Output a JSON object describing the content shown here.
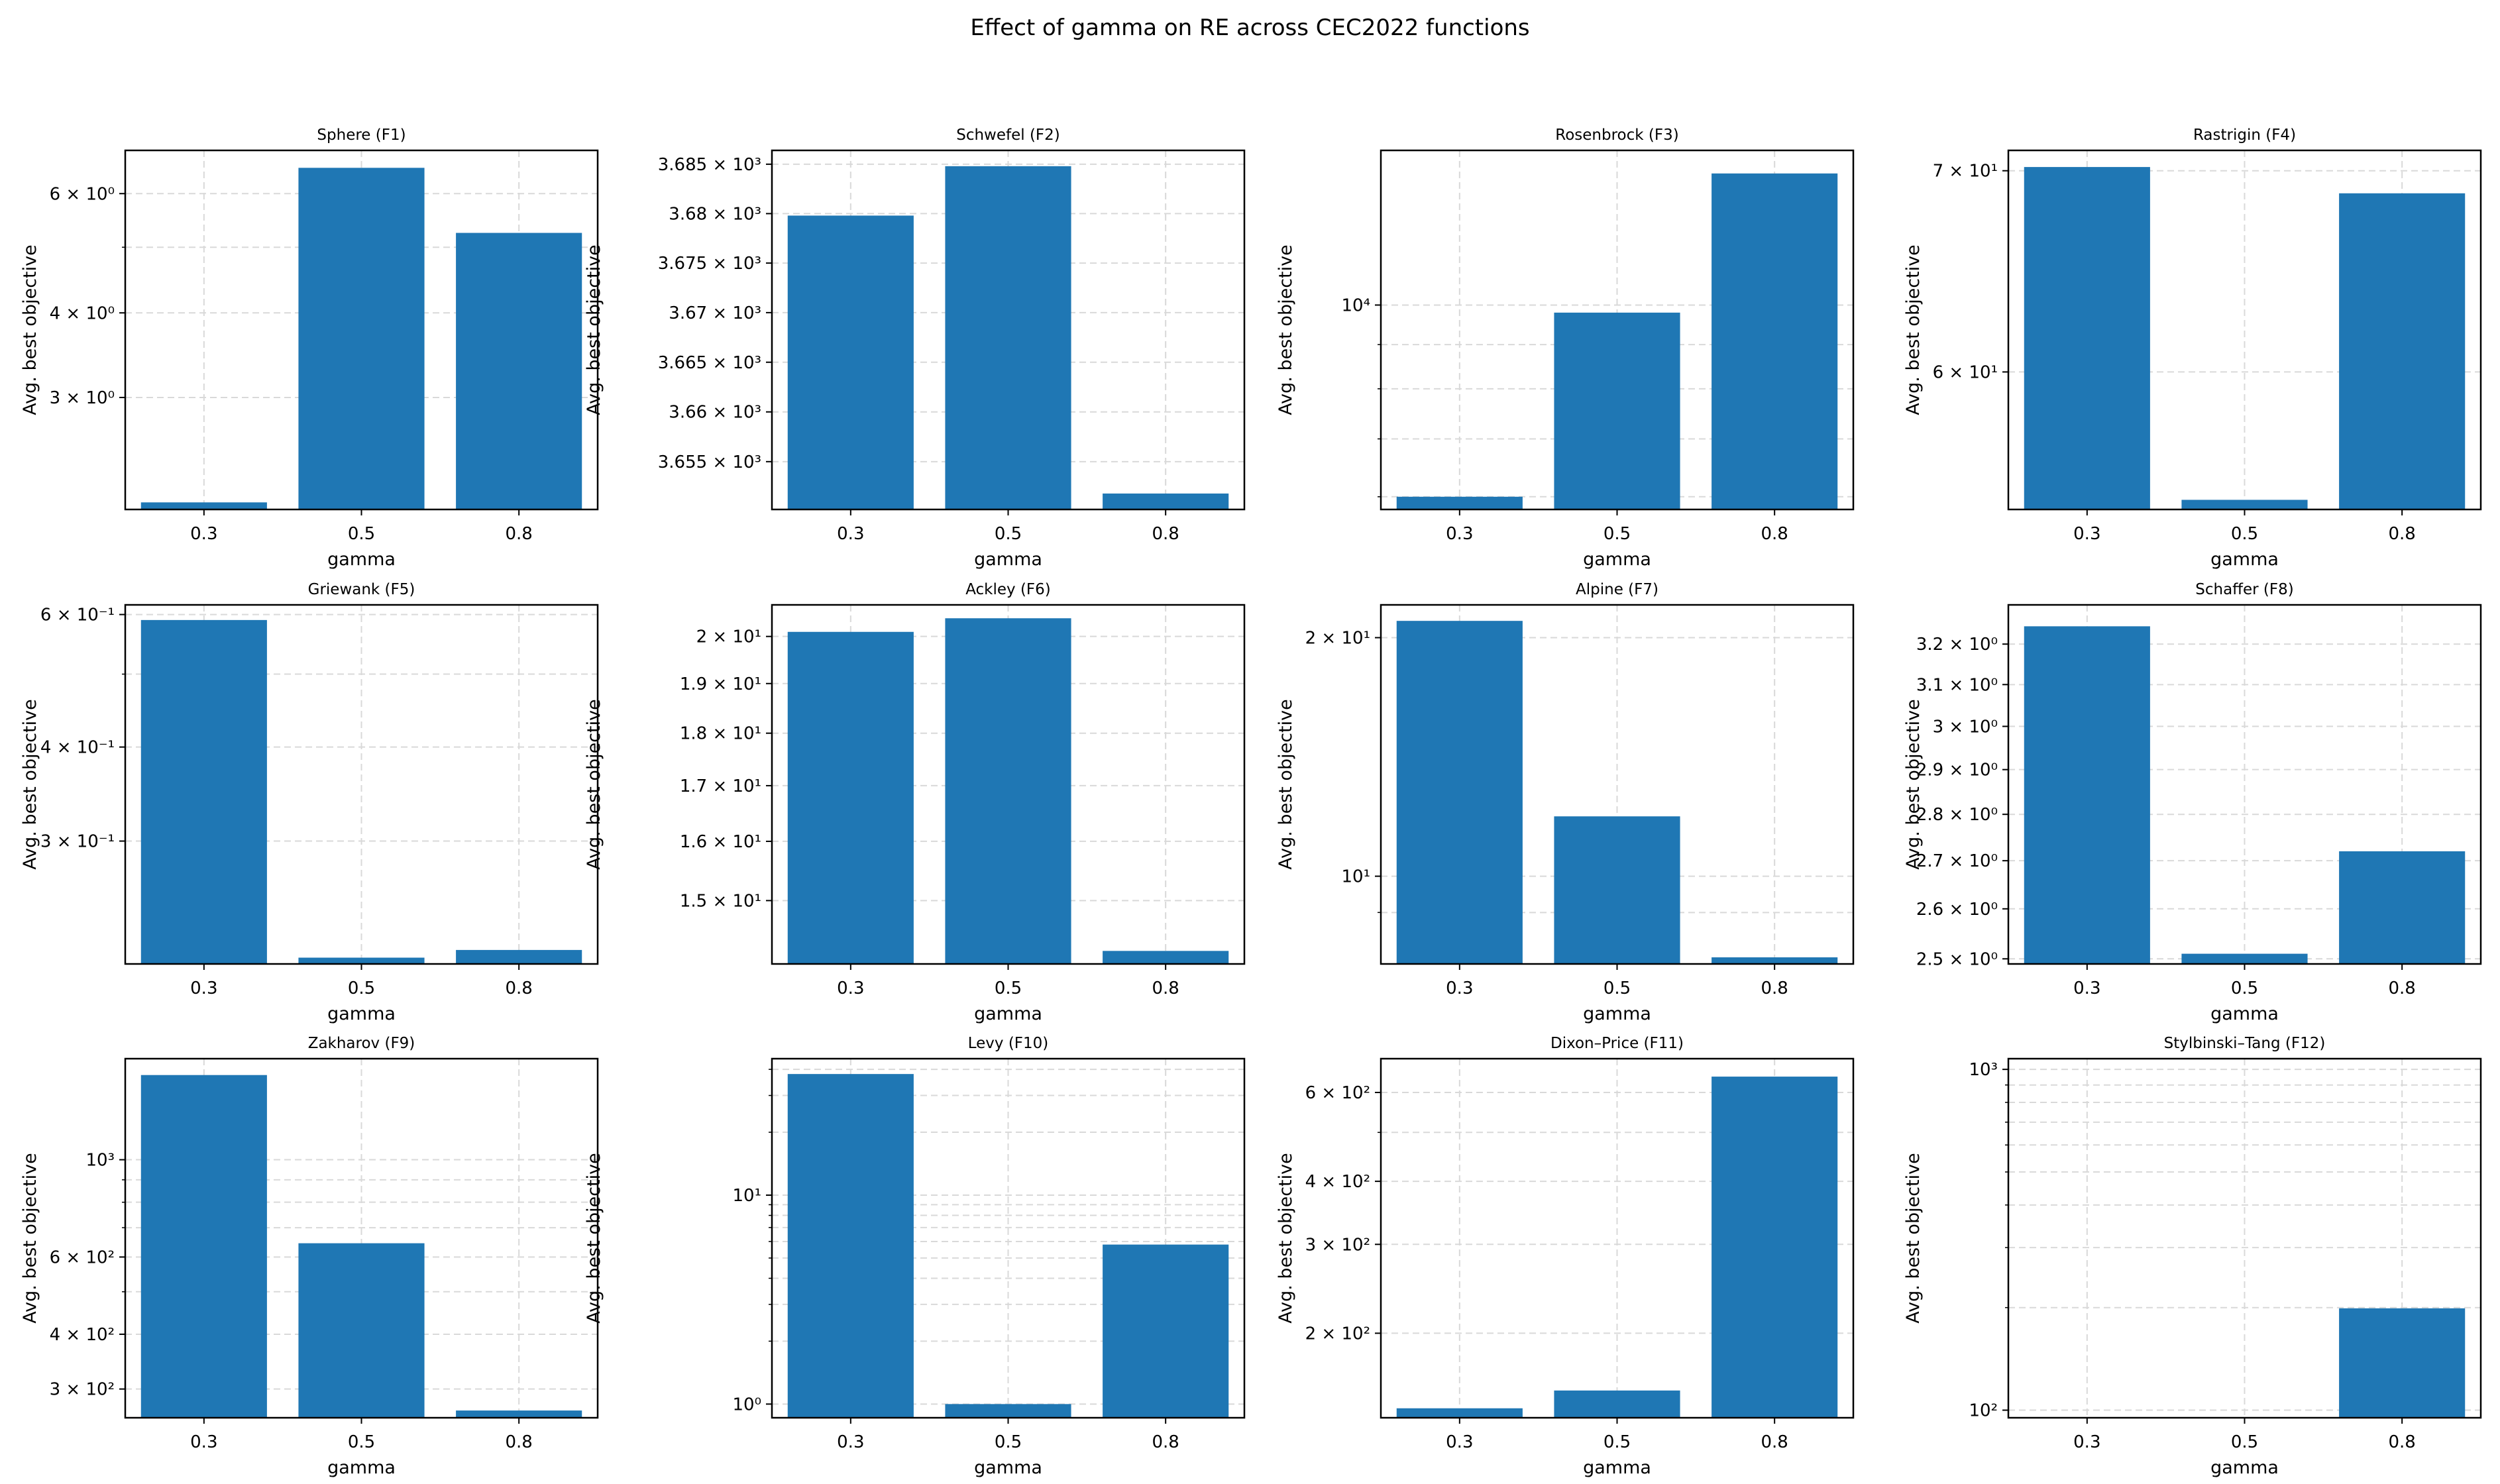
{
  "figure_title": "Effect of gamma on RE across CEC2022 functions",
  "colors": {
    "bar": "#1f77b4",
    "grid": "#d9d9d9",
    "axis": "#000000"
  },
  "chart_data": [
    {
      "type": "bar",
      "title": "Sphere (F1)",
      "xlabel": "gamma",
      "ylabel": "Avg. best objective",
      "yscale": "log",
      "categories": [
        "0.3",
        "0.5",
        "0.8"
      ],
      "values": [
        2.1,
        6.55,
        5.25
      ],
      "ylim": [
        2.05,
        6.95
      ],
      "ticks": [
        {
          "v": 6,
          "label": "6 × 10⁰"
        },
        {
          "v": 4,
          "label": "4 × 10⁰"
        },
        {
          "v": 3,
          "label": "3 × 10⁰"
        }
      ],
      "minor": [
        5
      ]
    },
    {
      "type": "bar",
      "title": "Schwefel (F2)",
      "xlabel": "gamma",
      "ylabel": "Avg. best objective",
      "yscale": "log",
      "categories": [
        "0.3",
        "0.5",
        "0.8"
      ],
      "values": [
        3679.8,
        3684.8,
        3651.8
      ],
      "ylim": [
        3650.2,
        3686.4
      ],
      "ticks": [
        {
          "v": 3685,
          "label": "3.685 × 10³"
        },
        {
          "v": 3680,
          "label": "3.68 × 10³"
        },
        {
          "v": 3675,
          "label": "3.675 × 10³"
        },
        {
          "v": 3670,
          "label": "3.67 × 10³"
        },
        {
          "v": 3665,
          "label": "3.665 × 10³"
        },
        {
          "v": 3660,
          "label": "3.66 × 10³"
        },
        {
          "v": 3655,
          "label": "3.655 × 10³"
        }
      ],
      "minor": []
    },
    {
      "type": "bar",
      "title": "Rosenbrock (F3)",
      "xlabel": "gamma",
      "ylabel": "Avg. best objective",
      "yscale": "log",
      "categories": [
        "0.3",
        "0.5",
        "0.8"
      ],
      "values": [
        6000,
        9800,
        14200
      ],
      "ylim": [
        5800,
        15100
      ],
      "ticks": [
        {
          "v": 10000,
          "label": "10⁴"
        }
      ],
      "minor": [
        6000,
        7000,
        8000,
        9000
      ]
    },
    {
      "type": "bar",
      "title": "Rastrigin (F4)",
      "xlabel": "gamma",
      "ylabel": "Avg. best objective",
      "yscale": "log",
      "categories": [
        "0.3",
        "0.5",
        "0.8"
      ],
      "values": [
        70.2,
        54.4,
        68.8
      ],
      "ylim": [
        54.0,
        71.1
      ],
      "ticks": [
        {
          "v": 70,
          "label": "7 × 10¹"
        },
        {
          "v": 60,
          "label": "6 × 10¹"
        }
      ],
      "minor": []
    },
    {
      "type": "bar",
      "title": "Griewank (F5)",
      "xlabel": "gamma",
      "ylabel": "Avg. best objective",
      "yscale": "log",
      "categories": [
        "0.3",
        "0.5",
        "0.8"
      ],
      "values": [
        0.59,
        0.21,
        0.215
      ],
      "ylim": [
        0.206,
        0.618
      ],
      "ticks": [
        {
          "v": 0.6,
          "label": "6 × 10⁻¹"
        },
        {
          "v": 0.4,
          "label": "4 × 10⁻¹"
        },
        {
          "v": 0.3,
          "label": "3 × 10⁻¹"
        }
      ],
      "minor": [
        0.5
      ]
    },
    {
      "type": "bar",
      "title": "Ackley (F6)",
      "xlabel": "gamma",
      "ylabel": "Avg. best objective",
      "yscale": "log",
      "categories": [
        "0.3",
        "0.5",
        "0.8"
      ],
      "values": [
        20.1,
        20.4,
        14.2
      ],
      "ylim": [
        14.0,
        20.7
      ],
      "ticks": [
        {
          "v": 20,
          "label": "2 × 10¹"
        },
        {
          "v": 19,
          "label": "1.9 × 10¹"
        },
        {
          "v": 18,
          "label": "1.8 × 10¹"
        },
        {
          "v": 17,
          "label": "1.7 × 10¹"
        },
        {
          "v": 16,
          "label": "1.6 × 10¹"
        },
        {
          "v": 15,
          "label": "1.5 × 10¹"
        }
      ],
      "minor": []
    },
    {
      "type": "bar",
      "title": "Alpine (F7)",
      "xlabel": "gamma",
      "ylabel": "Avg. best objective",
      "yscale": "log",
      "categories": [
        "0.3",
        "0.5",
        "0.8"
      ],
      "values": [
        21.0,
        11.9,
        7.9
      ],
      "ylim": [
        7.75,
        22.0
      ],
      "ticks": [
        {
          "v": 20,
          "label": "2 × 10¹"
        },
        {
          "v": 10,
          "label": "10¹"
        }
      ],
      "minor": [
        9
      ]
    },
    {
      "type": "bar",
      "title": "Schaffer (F8)",
      "xlabel": "gamma",
      "ylabel": "Avg. best objective",
      "yscale": "log",
      "categories": [
        "0.3",
        "0.5",
        "0.8"
      ],
      "values": [
        3.245,
        2.51,
        2.72
      ],
      "ylim": [
        2.49,
        3.3
      ],
      "ticks": [
        {
          "v": 3.2,
          "label": "3.2 × 10⁰"
        },
        {
          "v": 3.1,
          "label": "3.1 × 10⁰"
        },
        {
          "v": 3.0,
          "label": "3 × 10⁰"
        },
        {
          "v": 2.9,
          "label": "2.9 × 10⁰"
        },
        {
          "v": 2.8,
          "label": "2.8 × 10⁰"
        },
        {
          "v": 2.7,
          "label": "2.7 × 10⁰"
        },
        {
          "v": 2.6,
          "label": "2.6 × 10⁰"
        },
        {
          "v": 2.5,
          "label": "2.5 × 10⁰"
        }
      ],
      "minor": []
    },
    {
      "type": "bar",
      "title": "Zakharov (F9)",
      "xlabel": "gamma",
      "ylabel": "Avg. best objective",
      "yscale": "log",
      "categories": [
        "0.3",
        "0.5",
        "0.8"
      ],
      "values": [
        1560,
        645,
        268
      ],
      "ylim": [
        258,
        1700
      ],
      "ticks": [
        {
          "v": 1000,
          "label": "10³"
        },
        {
          "v": 600,
          "label": "6 × 10²"
        },
        {
          "v": 400,
          "label": "4 × 10²"
        },
        {
          "v": 300,
          "label": "3 × 10²"
        }
      ],
      "minor": [
        500,
        700,
        800,
        900
      ]
    },
    {
      "type": "bar",
      "title": "Levy (F10)",
      "xlabel": "gamma",
      "ylabel": "Avg. best objective",
      "yscale": "log",
      "categories": [
        "0.3",
        "0.5",
        "0.8"
      ],
      "values": [
        38.0,
        1.0,
        5.8
      ],
      "ylim": [
        0.86,
        45.0
      ],
      "ticks": [
        {
          "v": 10,
          "label": "10¹"
        },
        {
          "v": 1,
          "label": "10⁰"
        }
      ],
      "minor": [
        2,
        3,
        4,
        5,
        6,
        7,
        8,
        9,
        20,
        30,
        40
      ]
    },
    {
      "type": "bar",
      "title": "Dixon–Price (F11)",
      "xlabel": "gamma",
      "ylabel": "Avg. best objective",
      "yscale": "log",
      "categories": [
        "0.3",
        "0.5",
        "0.8"
      ],
      "values": [
        142,
        154,
        645
      ],
      "ylim": [
        136,
        700
      ],
      "ticks": [
        {
          "v": 600,
          "label": "6 × 10²"
        },
        {
          "v": 400,
          "label": "4 × 10²"
        },
        {
          "v": 300,
          "label": "3 × 10²"
        },
        {
          "v": 200,
          "label": "2 × 10²"
        }
      ],
      "minor": [
        500
      ]
    },
    {
      "type": "bar",
      "title": "Stylbinski–Tang (F12)",
      "xlabel": "gamma",
      "ylabel": "Avg. best objective",
      "yscale": "log",
      "categories": [
        "0.3",
        "0.5",
        "0.8"
      ],
      "values": [
        null,
        null,
        199
      ],
      "ylim": [
        95,
        1075
      ],
      "ticks": [
        {
          "v": 1000,
          "label": "10³"
        },
        {
          "v": 100,
          "label": "10²"
        }
      ],
      "minor": [
        200,
        300,
        400,
        500,
        600,
        700,
        800,
        900
      ]
    }
  ]
}
